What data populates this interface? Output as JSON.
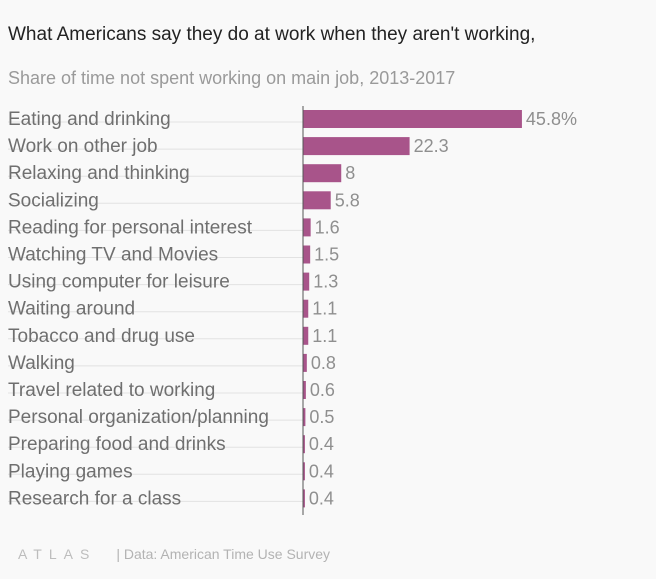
{
  "header": {
    "title": "What Americans say they do at work when they aren't working,",
    "subtitle": "Share of time not spent working on main job, 2013-2017"
  },
  "footer": {
    "logo": "ATLAS",
    "source": "| Data: American Time Use Survey"
  },
  "colors": {
    "bar": "#a8548a",
    "label": "#6f6f6f",
    "value": "#8f8f8f",
    "gridline": "#e2e2e2",
    "axis": "#555555"
  },
  "chart_data": {
    "type": "bar",
    "orientation": "horizontal",
    "title": "What Americans say they do at work when they aren't working,",
    "subtitle": "Share of time not spent working on main job, 2013-2017",
    "categories": [
      "Eating and drinking",
      "Work on other job",
      "Relaxing and thinking",
      "Socializing",
      "Reading for personal interest",
      "Watching TV and Movies",
      "Using computer for leisure",
      "Waiting around",
      "Tobacco and drug use",
      "Walking",
      "Travel related to working",
      "Personal organization/planning",
      "Preparing food and drinks",
      "Playing games",
      "Research for a class"
    ],
    "values": [
      45.8,
      22.3,
      8,
      5.8,
      1.6,
      1.5,
      1.3,
      1.1,
      1.1,
      0.8,
      0.6,
      0.5,
      0.4,
      0.4,
      0.4
    ],
    "value_labels": [
      "45.8%",
      "22.3",
      "8",
      "5.8",
      "1.6",
      "1.5",
      "1.3",
      "1.1",
      "1.1",
      "0.8",
      "0.6",
      "0.5",
      "0.4",
      "0.4",
      "0.4"
    ],
    "xlim": [
      0,
      50
    ],
    "grid": true,
    "legend": "none"
  }
}
